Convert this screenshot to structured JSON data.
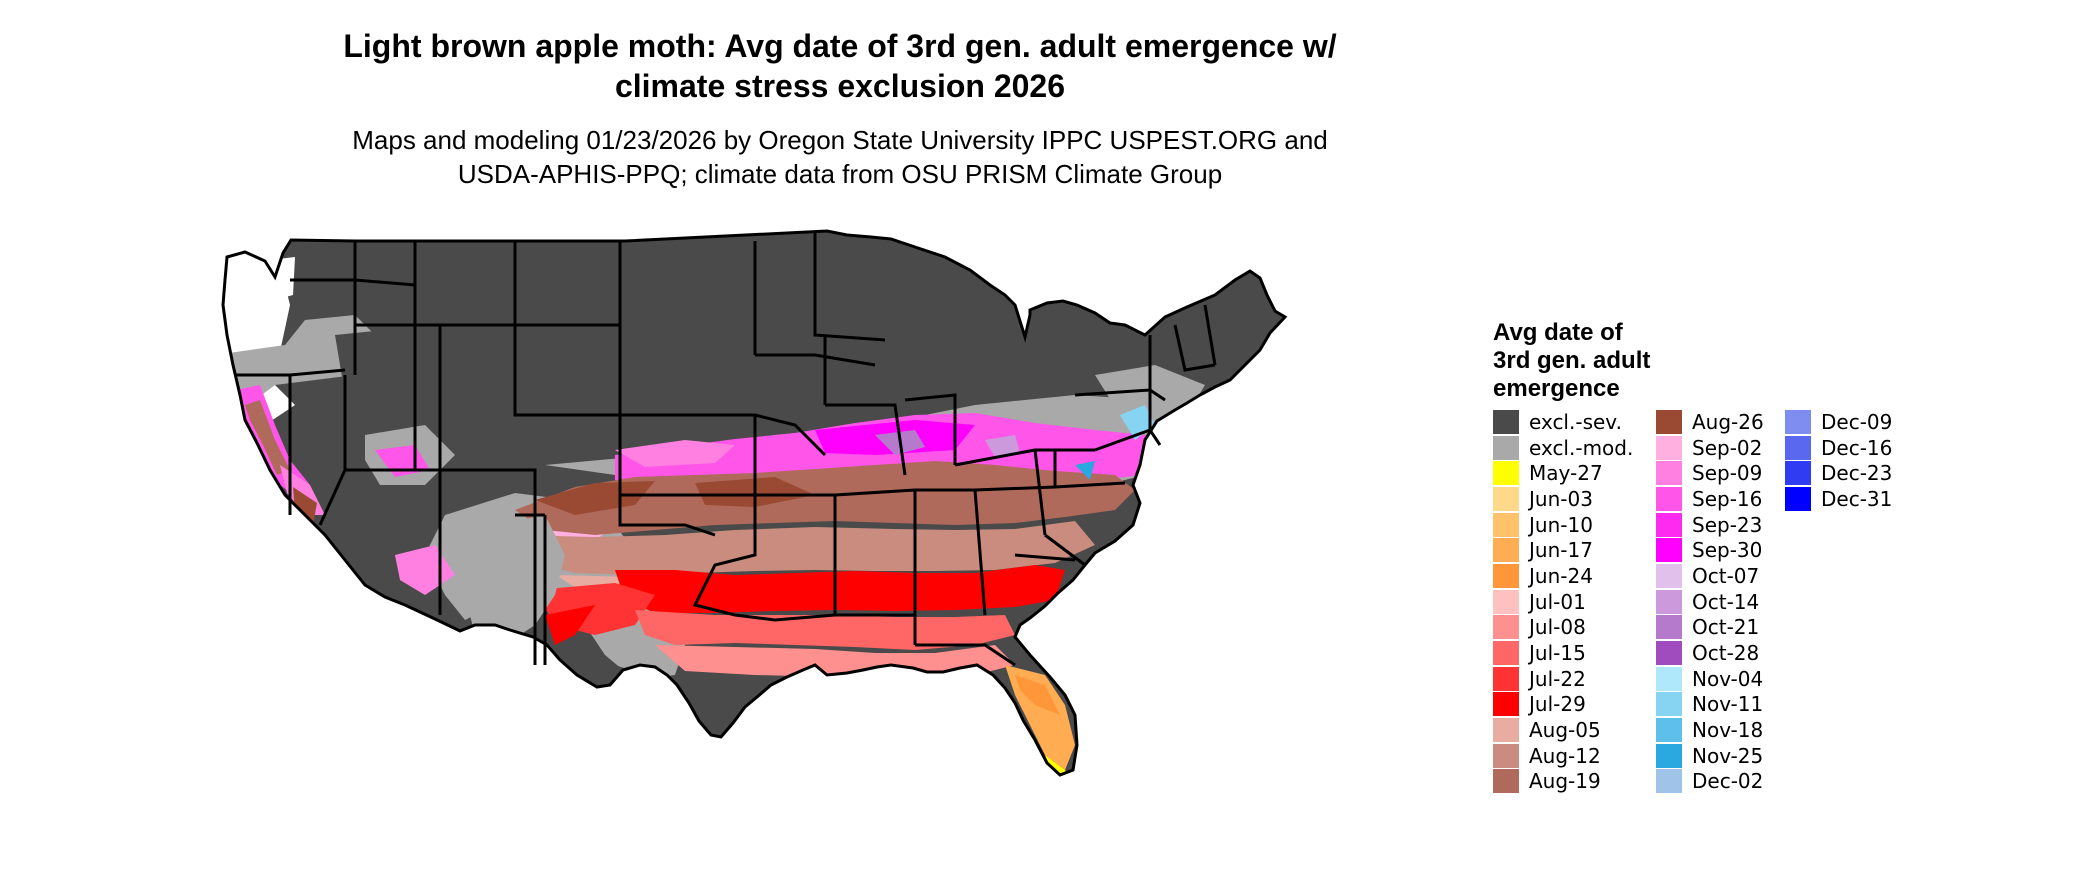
{
  "title": {
    "line1": "Light brown apple moth: Avg date of 3rd gen. adult emergence w/",
    "line2": "climate stress exclusion 2026"
  },
  "subtitle": {
    "line1": "Maps and modeling 01/23/2026 by Oregon State University IPPC USPEST.ORG and",
    "line2": "USDA-APHIS-PPQ; climate data from OSU PRISM Climate Group"
  },
  "legend": {
    "title_lines": [
      "Avg date of",
      "3rd gen. adult",
      "emergence"
    ],
    "columns": [
      [
        {
          "label": "excl.-sev.",
          "color": "#4a4a4a"
        },
        {
          "label": "excl.-mod.",
          "color": "#a9a9a9"
        },
        {
          "label": "May-27",
          "color": "#ffff00"
        },
        {
          "label": "Jun-03",
          "color": "#ffd98a"
        },
        {
          "label": "Jun-10",
          "color": "#ffc26b"
        },
        {
          "label": "Jun-17",
          "color": "#ffac52"
        },
        {
          "label": "Jun-24",
          "color": "#ff963a"
        },
        {
          "label": "Jul-01",
          "color": "#ffc0c0"
        },
        {
          "label": "Jul-08",
          "color": "#ff9090"
        },
        {
          "label": "Jul-15",
          "color": "#ff6666"
        },
        {
          "label": "Jul-22",
          "color": "#ff3333"
        },
        {
          "label": "Jul-29",
          "color": "#ff0000"
        },
        {
          "label": "Aug-05",
          "color": "#e8aca0"
        },
        {
          "label": "Aug-12",
          "color": "#c98c7e"
        },
        {
          "label": "Aug-19",
          "color": "#b06a5c"
        }
      ],
      [
        {
          "label": "Aug-26",
          "color": "#9a4a33"
        },
        {
          "label": "Sep-02",
          "color": "#ffb0e0"
        },
        {
          "label": "Sep-09",
          "color": "#ff80e0"
        },
        {
          "label": "Sep-16",
          "color": "#ff55e8"
        },
        {
          "label": "Sep-23",
          "color": "#ff2af0"
        },
        {
          "label": "Sep-30",
          "color": "#ff00ff"
        },
        {
          "label": "Oct-07",
          "color": "#e2c0ec"
        },
        {
          "label": "Oct-14",
          "color": "#cc99dd"
        },
        {
          "label": "Oct-21",
          "color": "#b57acc"
        },
        {
          "label": "Oct-28",
          "color": "#a04cbf"
        },
        {
          "label": "Nov-04",
          "color": "#aee8fa"
        },
        {
          "label": "Nov-11",
          "color": "#86d4f2"
        },
        {
          "label": "Nov-18",
          "color": "#5cc0ea"
        },
        {
          "label": "Nov-25",
          "color": "#2aa8e0"
        },
        {
          "label": "Dec-02",
          "color": "#a0c4e8"
        }
      ],
      [
        {
          "label": "Dec-09",
          "color": "#7f8cf0"
        },
        {
          "label": "Dec-16",
          "color": "#5a68f0"
        },
        {
          "label": "Dec-23",
          "color": "#2f3cf2"
        },
        {
          "label": "Dec-31",
          "color": "#0000ff"
        }
      ]
    ]
  },
  "map": {
    "state_border_color": "#000000",
    "background_color": "#ffffff"
  }
}
